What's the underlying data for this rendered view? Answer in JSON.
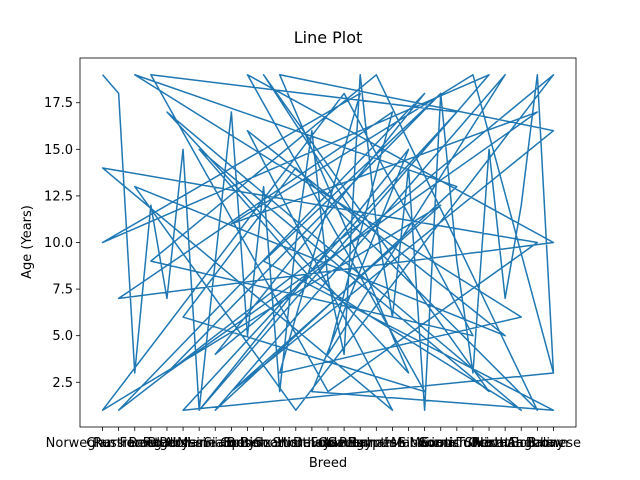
{
  "chart_data": {
    "type": "line",
    "title": "Line Plot",
    "x_label": "Breed",
    "y_label": "Age (Years)",
    "color": "#1f77b4",
    "x": [
      "Norwegian Forest",
      "Chartreux",
      "Russian Blue",
      "Bengal",
      "Ragdoll",
      "Persian",
      "Abyssinian",
      "Maine Coon",
      "Siamese",
      "Sphynx",
      "Birman",
      "British Shorthair",
      "Scottish Fold",
      "Himalayan",
      "Devon Rex",
      "Oriental",
      "Savannah",
      "Burmese",
      "Egyptian Mau",
      "Manx",
      "Siberian",
      "Somali",
      "Cornish Rex",
      "Exotic Shorthair",
      "Ocicat",
      "Turkish Angora",
      "Havana Brown",
      "Bombay",
      "Balinese",
      "Persian",
      "Cornish Rex",
      "Bengal",
      "Devon Rex",
      "Bombay",
      "Norwegian Forest",
      "Egyptian Mau",
      "Sphynx",
      "Turkish Angora",
      "Russian Blue",
      "Scottish Fold",
      "Balinese",
      "Maine Coon",
      "Siberian",
      "Chartreux",
      "Savannah",
      "Birman",
      "Ocicat",
      "Abyssinian",
      "Himalayan",
      "Havana Brown",
      "Ragdoll",
      "Manx",
      "British Shorthair",
      "Balinese",
      "Siamese",
      "Somali",
      "Norwegian Forest",
      "Oriental",
      "Exotic Shorthair",
      "Bengal",
      "Burmese",
      "Bombay",
      "Scottish Fold",
      "Persian",
      "Siberian",
      "Sphynx",
      "Balinese",
      "Chartreux",
      "Egyptian Mau",
      "Devon Rex",
      "Turkish Angora",
      "Maine Coon",
      "Cornish Rex",
      "Russian Blue",
      "Havana Brown",
      "British Shorthair",
      "Savannah",
      "Norwegian Forest",
      "Ocicat",
      "Abyssinian",
      "Manx",
      "Himalayan",
      "Balinese",
      "Birman",
      "Somali",
      "Ragdoll",
      "Bombay",
      "Siamese",
      "Exotic Shorthair",
      "Balinese"
    ],
    "values": [
      19,
      18,
      3,
      12,
      7,
      15,
      1,
      9,
      17,
      5,
      13,
      2,
      10,
      16,
      8,
      4,
      19,
      11,
      6,
      14,
      1,
      18,
      9,
      3,
      15,
      7,
      12,
      19,
      3,
      1,
      17,
      19,
      2,
      10,
      14,
      1,
      16,
      5,
      13,
      1,
      19,
      4,
      18,
      1,
      11,
      19,
      2,
      15,
      8,
      1,
      17,
      3,
      19,
      16,
      2,
      12,
      1,
      18,
      5,
      9,
      19,
      1,
      14,
      6,
      2,
      19,
      10,
      7,
      17,
      4,
      19,
      1,
      13,
      19,
      6,
      3,
      18,
      10,
      19,
      1,
      15,
      2,
      1,
      9,
      18,
      3,
      17,
      11,
      19,
      3
    ],
    "ylim": [
      0.1,
      19.9
    ],
    "yticks": [
      2.5,
      {
        "value": 5,
        "label": "5.0"
      },
      7.5,
      {
        "value": 10,
        "label": "10.0"
      },
      12.5,
      {
        "value": 15,
        "label": "15.0"
      },
      17.5
    ]
  }
}
